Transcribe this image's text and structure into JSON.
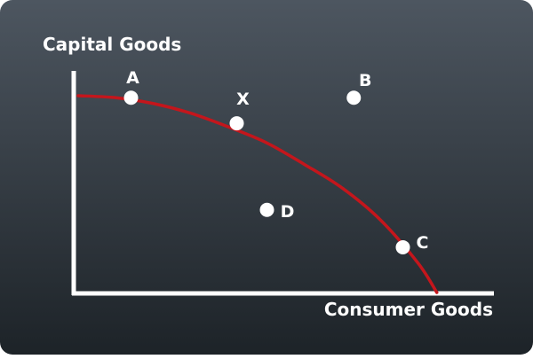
{
  "chart_data": {
    "type": "line",
    "title": "",
    "xlabel": "Consumer Goods",
    "ylabel": "Capital Goods",
    "xlim": [
      0,
      100
    ],
    "ylim": [
      0,
      100
    ],
    "grid": false,
    "legend": "none",
    "colors": {
      "background_top": "#4d5660",
      "background_bottom": "#1d2328",
      "axis": "#ffffff",
      "curve": "#c4161c",
      "point_fill": "#ffffff",
      "text": "#ffffff"
    },
    "series": [
      {
        "values_x": [
          0,
          10,
          20,
          30,
          40,
          50,
          60,
          70,
          80,
          90,
          95
        ],
        "values_y": [
          100,
          99,
          96,
          91,
          84,
          76,
          65,
          53,
          37,
          15,
          0
        ]
      }
    ],
    "points": [
      {
        "label": "A",
        "x": 14,
        "y": 99
      },
      {
        "label": "X",
        "x": 42,
        "y": 86
      },
      {
        "label": "B",
        "x": 73,
        "y": 99
      },
      {
        "label": "D",
        "x": 50,
        "y": 42
      },
      {
        "label": "C",
        "x": 86,
        "y": 23
      }
    ]
  }
}
